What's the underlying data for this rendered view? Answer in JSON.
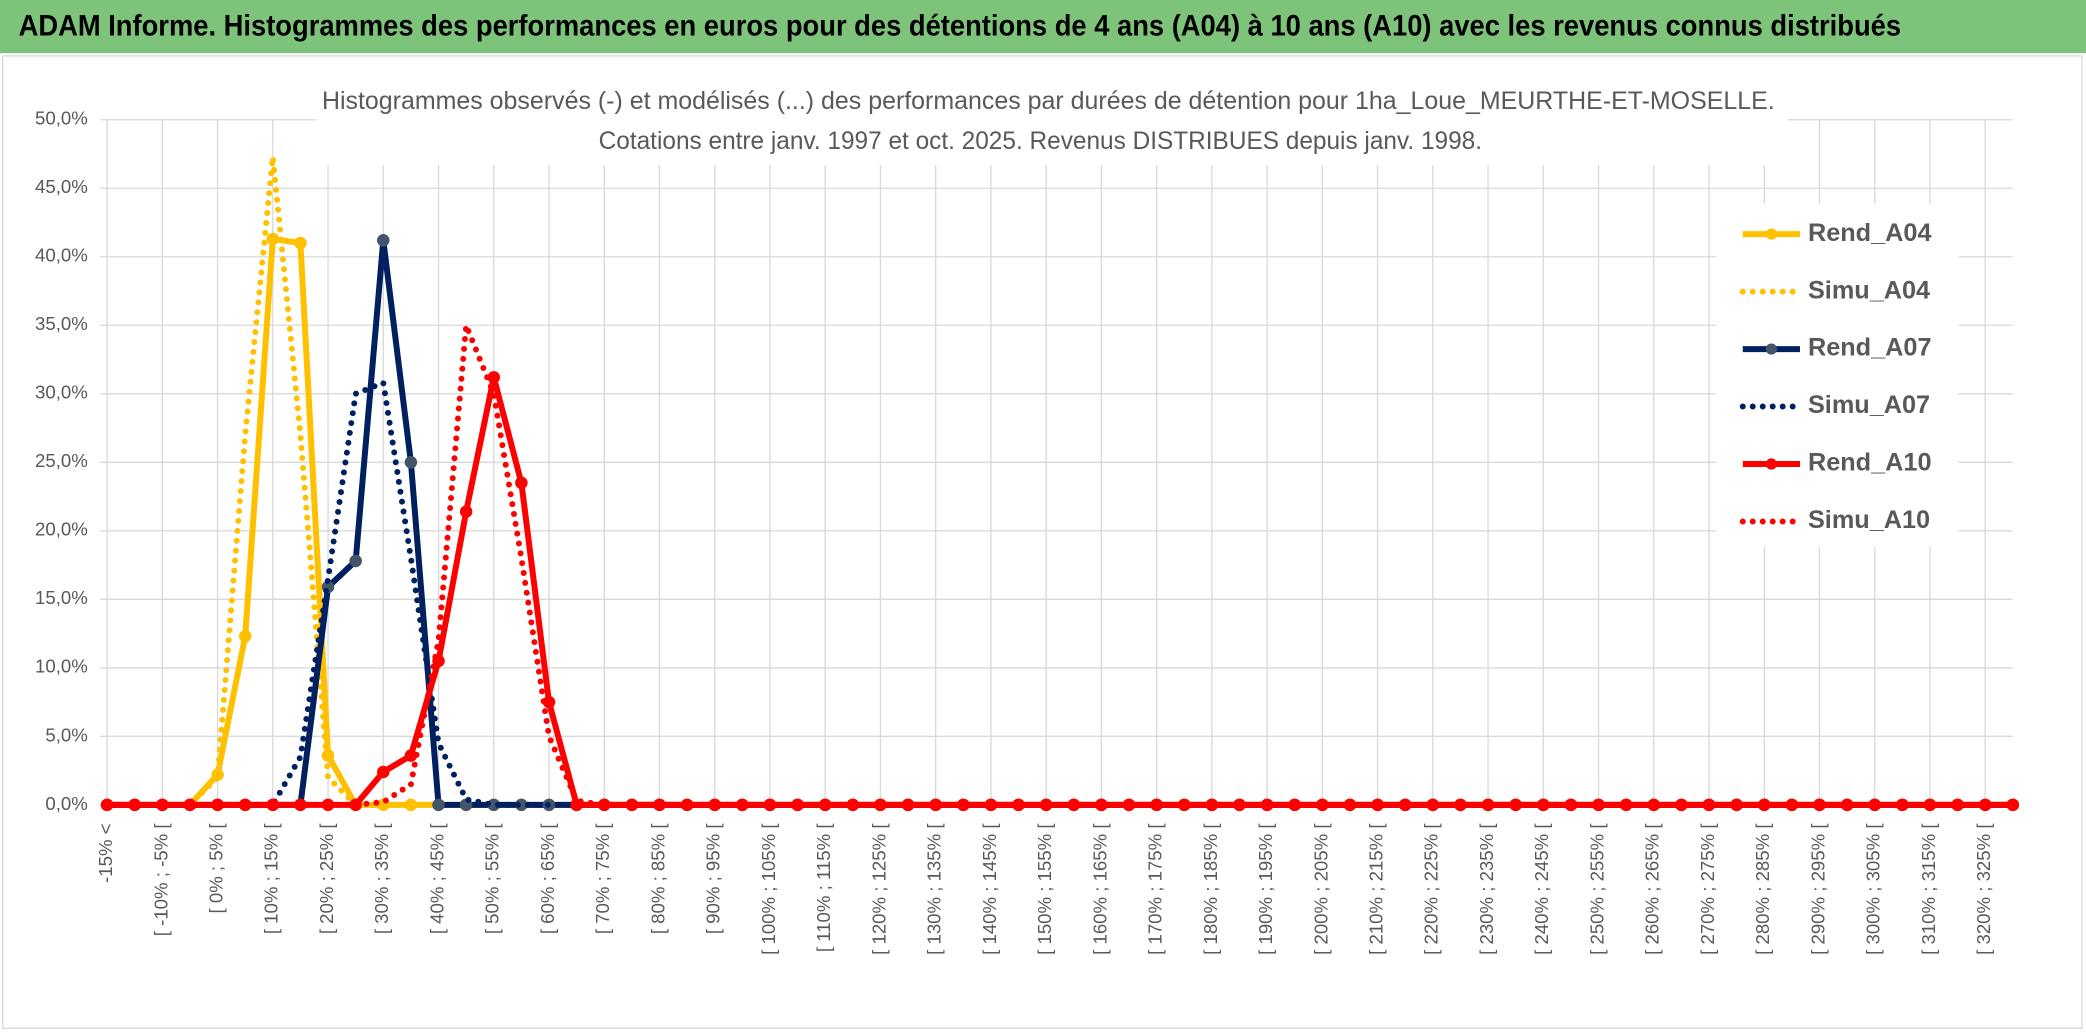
{
  "header": {
    "title": "ADAM Informe. Histogrammes des performances en euros pour des détentions de 4 ans (A04) à 10 ans (A10) avec les revenus connus distribués"
  },
  "chart_data": {
    "type": "line",
    "title": "Histogrammes observés (-) et modélisés (...) des performances par durées de détention pour 1ha_Loue_MEURTHE-ET-MOSELLE.",
    "subtitle": "Cotations entre janv. 1997 et oct. 2025. Revenus DISTRIBUES depuis janv. 1998.",
    "categories": [
      "-15% <",
      null,
      "[ -10% ; -5% [",
      null,
      "[ 0% ; 5% [",
      null,
      "[ 10% ; 15% [",
      null,
      "[ 20% ; 25% [",
      null,
      "[ 30% ; 35% [",
      null,
      "[ 40% ; 45% [",
      null,
      "[ 50% ; 55% [",
      null,
      "[ 60% ; 65% [",
      null,
      "[ 70% ; 75% [",
      null,
      "[ 80% ; 85% [",
      null,
      "[ 90% ; 95% [",
      null,
      "[ 100% ; 105% [",
      null,
      "[ 110% ; 115% [",
      null,
      "[ 120% ; 125% [",
      null,
      "[ 130% ; 135% [",
      null,
      "[ 140% ; 145% [",
      null,
      "[ 150% ; 155% [",
      null,
      "[ 160% ; 165% [",
      null,
      "[ 170% ; 175% [",
      null,
      "[ 180% ; 185% [",
      null,
      "[ 190% ; 195% [",
      null,
      "[ 200% ; 205% [",
      null,
      "[ 210% ; 215% [",
      null,
      "[ 220% ; 225% [",
      null,
      "[ 230% ; 235% [",
      null,
      "[ 240% ; 245% [",
      null,
      "[ 250% ; 255% [",
      null,
      "[ 260% ; 265% [",
      null,
      "[ 270% ; 275% [",
      null,
      "[ 280% ; 285% [",
      null,
      "[ 290% ; 295% [",
      null,
      "[ 300% ; 305% [",
      null,
      "[ 310% ; 315% [",
      null,
      "[ 320% ; 325% [",
      null
    ],
    "series": [
      {
        "name": "Rend_A04",
        "color": "#FFC000",
        "style": "solid",
        "markers": true,
        "marker_color": "#FFC000",
        "values": [
          0,
          0,
          0,
          0,
          2.2,
          12.3,
          41.3,
          41.0,
          3.6,
          0,
          0,
          0,
          0,
          0,
          0,
          0,
          0,
          0,
          0,
          0,
          0,
          0,
          0,
          0,
          0,
          0,
          0,
          0,
          0,
          0,
          0,
          0,
          0,
          0,
          0,
          0,
          0,
          0,
          0,
          0,
          0,
          0,
          0,
          0,
          0,
          0,
          0,
          0,
          0,
          0,
          0,
          0,
          0,
          0,
          0,
          0,
          0,
          0,
          0,
          0,
          0,
          0,
          0,
          0,
          0,
          0,
          0,
          0,
          0,
          0
        ]
      },
      {
        "name": "Simu_A04",
        "color": "#FFC000",
        "style": "dotted",
        "markers": false,
        "values": [
          0,
          0,
          0,
          0,
          2,
          27,
          47.3,
          27,
          2,
          0,
          0,
          0,
          0,
          0,
          0,
          0,
          0,
          0,
          0,
          0,
          0,
          0,
          0,
          0,
          0,
          0,
          0,
          0,
          0,
          0,
          0,
          0,
          0,
          0,
          0,
          0,
          0,
          0,
          0,
          0,
          0,
          0,
          0,
          0,
          0,
          0,
          0,
          0,
          0,
          0,
          0,
          0,
          0,
          0,
          0,
          0,
          0,
          0,
          0,
          0,
          0,
          0,
          0,
          0,
          0,
          0,
          0,
          0,
          0,
          0
        ]
      },
      {
        "name": "Rend_A07",
        "color": "#002060",
        "style": "solid",
        "markers": true,
        "marker_color": "#44546A",
        "values": [
          0,
          0,
          0,
          0,
          0,
          0,
          0,
          0,
          15.9,
          17.8,
          41.2,
          25.0,
          0,
          0,
          0,
          0,
          0,
          0,
          0,
          0,
          0,
          0,
          0,
          0,
          0,
          0,
          0,
          0,
          0,
          0,
          0,
          0,
          0,
          0,
          0,
          0,
          0,
          0,
          0,
          0,
          0,
          0,
          0,
          0,
          0,
          0,
          0,
          0,
          0,
          0,
          0,
          0,
          0,
          0,
          0,
          0,
          0,
          0,
          0,
          0,
          0,
          0,
          0,
          0,
          0,
          0,
          0,
          0,
          0,
          0
        ]
      },
      {
        "name": "Simu_A07",
        "color": "#002060",
        "style": "dotted",
        "markers": false,
        "values": [
          0,
          0,
          0,
          0,
          0,
          0,
          0,
          3.5,
          16.5,
          30,
          30.8,
          18,
          4.5,
          0.4,
          0,
          0,
          0,
          0,
          0,
          0,
          0,
          0,
          0,
          0,
          0,
          0,
          0,
          0,
          0,
          0,
          0,
          0,
          0,
          0,
          0,
          0,
          0,
          0,
          0,
          0,
          0,
          0,
          0,
          0,
          0,
          0,
          0,
          0,
          0,
          0,
          0,
          0,
          0,
          0,
          0,
          0,
          0,
          0,
          0,
          0,
          0,
          0,
          0,
          0,
          0,
          0,
          0,
          0,
          0,
          0
        ]
      },
      {
        "name": "Rend_A10",
        "color": "#FF0000",
        "style": "solid",
        "markers": true,
        "marker_color": "#FF0000",
        "values": [
          0,
          0,
          0,
          0,
          0,
          0,
          0,
          0,
          0,
          0,
          2.4,
          3.6,
          10.5,
          21.4,
          31.2,
          23.5,
          7.5,
          0,
          0,
          0,
          0,
          0,
          0,
          0,
          0,
          0,
          0,
          0,
          0,
          0,
          0,
          0,
          0,
          0,
          0,
          0,
          0,
          0,
          0,
          0,
          0,
          0,
          0,
          0,
          0,
          0,
          0,
          0,
          0,
          0,
          0,
          0,
          0,
          0,
          0,
          0,
          0,
          0,
          0,
          0,
          0,
          0,
          0,
          0,
          0,
          0,
          0,
          0,
          0,
          0
        ]
      },
      {
        "name": "Simu_A10",
        "color": "#FF0000",
        "style": "dotted",
        "markers": false,
        "values": [
          0,
          0,
          0,
          0,
          0,
          0,
          0,
          0,
          0,
          0,
          0.2,
          1.5,
          12,
          35,
          30,
          18,
          5,
          0.3,
          0,
          0,
          0,
          0,
          0,
          0,
          0,
          0,
          0,
          0,
          0,
          0,
          0,
          0,
          0,
          0,
          0,
          0,
          0,
          0,
          0,
          0,
          0,
          0,
          0,
          0,
          0,
          0,
          0,
          0,
          0,
          0,
          0,
          0,
          0,
          0,
          0,
          0,
          0,
          0,
          0,
          0,
          0,
          0,
          0,
          0,
          0,
          0,
          0,
          0,
          0,
          0
        ]
      }
    ],
    "ylim": [
      0,
      50
    ],
    "yticks": [
      {
        "value": 0,
        "label": "0,0%"
      },
      {
        "value": 5,
        "label": "5,0%"
      },
      {
        "value": 10,
        "label": "10,0%"
      },
      {
        "value": 15,
        "label": "15,0%"
      },
      {
        "value": 20,
        "label": "20,0%"
      },
      {
        "value": 25,
        "label": "25,0%"
      },
      {
        "value": 30,
        "label": "30,0%"
      },
      {
        "value": 35,
        "label": "35,0%"
      },
      {
        "value": 40,
        "label": "40,0%"
      },
      {
        "value": 45,
        "label": "45,0%"
      },
      {
        "value": 50,
        "label": "50,0%"
      }
    ],
    "grid": true,
    "legend": "right"
  }
}
